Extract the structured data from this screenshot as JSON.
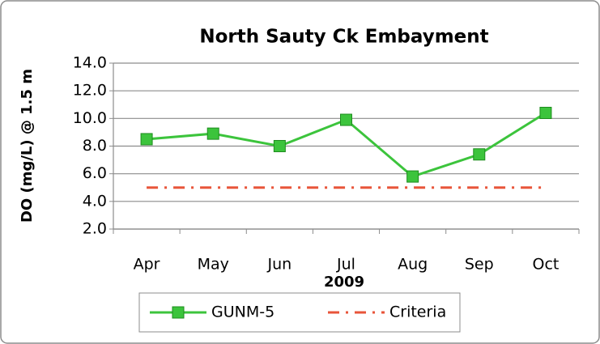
{
  "chart_data": {
    "type": "line",
    "title": "North Sauty Ck Embayment",
    "ylabel": "DO (mg/L) @ 1.5 m",
    "xlabel": "2009",
    "categories": [
      "Apr",
      "May",
      "Jun",
      "Jul",
      "Aug",
      "Sep",
      "Oct"
    ],
    "series": [
      {
        "name": "GUNM-5",
        "color": "#3cc43c",
        "marker": "square",
        "dash": "solid",
        "values": [
          8.5,
          8.9,
          8.0,
          9.9,
          5.8,
          7.4,
          10.4
        ]
      },
      {
        "name": "Criteria",
        "color": "#e8553a",
        "marker": "none",
        "dash": "dash-dot",
        "values": [
          5.0,
          5.0,
          5.0,
          5.0,
          5.0,
          5.0,
          5.0
        ]
      }
    ],
    "ylim": [
      2,
      14
    ],
    "yticks": [
      {
        "value": 2,
        "label": "2.0"
      },
      {
        "value": 4,
        "label": "4.0"
      },
      {
        "value": 6,
        "label": "6.0"
      },
      {
        "value": 8,
        "label": "8.0"
      },
      {
        "value": 10,
        "label": "10.0"
      },
      {
        "value": 12,
        "label": "12.0"
      },
      {
        "value": 14,
        "label": "14.0"
      }
    ],
    "grid": true,
    "legend": "bottom"
  }
}
